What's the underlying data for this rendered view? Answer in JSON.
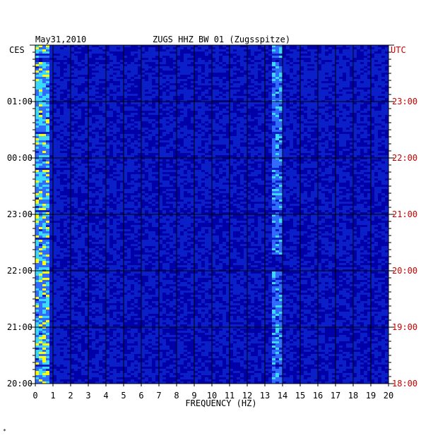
{
  "header": {
    "date": "May31,2010",
    "station": "ZUGS HHZ BW 01 (Zugsspitze)",
    "left_tz": "CES",
    "right_tz": "UTC"
  },
  "chart_data": {
    "type": "heatmap",
    "title": "ZUGS HHZ BW 01 (Zugsspitze)",
    "date": "May31,2010",
    "xlabel": "FREQUENCY (HZ)",
    "xlim": [
      0,
      20
    ],
    "x_ticks": [
      "0",
      "1",
      "2",
      "3",
      "4",
      "5",
      "6",
      "7",
      "8",
      "9",
      "10",
      "11",
      "12",
      "13",
      "14",
      "15",
      "16",
      "17",
      "18",
      "19",
      "20"
    ],
    "left_axis": {
      "label": "CES",
      "ticks": [
        "01:00",
        "00:00",
        "23:00",
        "22:00",
        "21:00",
        "20:00"
      ]
    },
    "right_axis": {
      "label": "UTC",
      "ticks": [
        "23:00",
        "22:00",
        "21:00",
        "20:00",
        "19:00",
        "18:00"
      ]
    },
    "grid": true,
    "colors": {
      "background": "#0a1fc8",
      "low": "#0000a8",
      "mid": "#2f6bff",
      "high": "#38d8ff",
      "hot": "#ffff00",
      "peak": "#ff6a00",
      "utc_text": "#cc0000"
    }
  },
  "footnote": "*"
}
